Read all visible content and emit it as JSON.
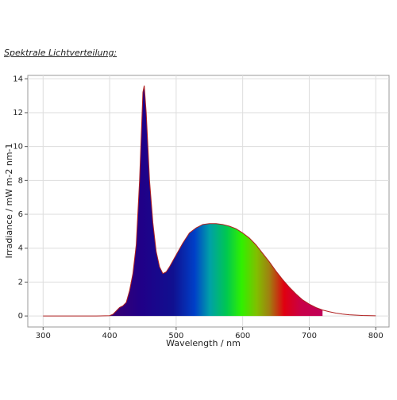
{
  "heading": "Spektrale Lichtverteilung:",
  "chart_data": {
    "type": "area",
    "xlabel": "Wavelength / nm",
    "ylabel": "Irradiance / mW m-2 nm-1",
    "x": [
      300,
      320,
      340,
      360,
      380,
      400,
      405,
      410,
      415,
      420,
      425,
      430,
      435,
      440,
      445,
      450,
      452,
      455,
      460,
      465,
      470,
      475,
      480,
      485,
      490,
      500,
      510,
      520,
      530,
      540,
      550,
      560,
      570,
      580,
      590,
      600,
      610,
      620,
      630,
      640,
      650,
      660,
      670,
      680,
      690,
      700,
      710,
      720,
      730,
      740,
      750,
      760,
      780,
      800
    ],
    "series": [
      {
        "name": "Irradiance",
        "color": "#b02020",
        "values": [
          0,
          0,
          0,
          0,
          0,
          0.02,
          0.1,
          0.3,
          0.5,
          0.6,
          0.8,
          1.5,
          2.5,
          4.2,
          8,
          13.2,
          13.6,
          12,
          8,
          5.5,
          3.8,
          2.9,
          2.5,
          2.6,
          2.9,
          3.6,
          4.3,
          4.9,
          5.2,
          5.4,
          5.45,
          5.45,
          5.4,
          5.3,
          5.15,
          4.9,
          4.6,
          4.2,
          3.7,
          3.2,
          2.65,
          2.15,
          1.7,
          1.3,
          0.95,
          0.7,
          0.5,
          0.35,
          0.25,
          0.17,
          0.11,
          0.07,
          0.03,
          0.01
        ]
      }
    ],
    "fill_xlim": [
      400,
      720
    ],
    "xlim": [
      277,
      820
    ],
    "ylim": [
      -0.65,
      14.2
    ],
    "xticks": [
      300,
      400,
      500,
      600,
      700,
      800
    ],
    "yticks": [
      0,
      2,
      4,
      6,
      8,
      10,
      12,
      14
    ],
    "grid": true
  }
}
